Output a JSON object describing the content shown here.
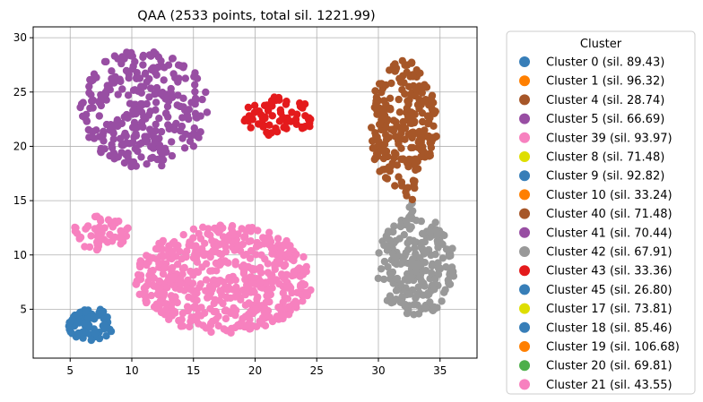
{
  "chart_data": {
    "type": "scatter",
    "title": "QAA (2533 points, total sil. 1221.99)",
    "xlabel": "",
    "ylabel": "",
    "xlim": [
      2,
      38
    ],
    "ylim": [
      0.5,
      31
    ],
    "x_ticks": [
      5,
      10,
      15,
      20,
      25,
      30,
      35
    ],
    "y_ticks": [
      5,
      10,
      15,
      20,
      25,
      30
    ],
    "grid": true,
    "legend_title": "Cluster",
    "legend_position": "outside-right",
    "legend": [
      {
        "label": "Cluster 0 (sil. 89.43)",
        "color": "#377eb8"
      },
      {
        "label": "Cluster 1 (sil. 96.32)",
        "color": "#ff7f00"
      },
      {
        "label": "Cluster 4 (sil. 28.74)",
        "color": "#a65628"
      },
      {
        "label": "Cluster 5 (sil. 66.69)",
        "color": "#984ea3"
      },
      {
        "label": "Cluster 39 (sil. 93.97)",
        "color": "#f781bf"
      },
      {
        "label": "Cluster 8 (sil. 71.48)",
        "color": "#dede00"
      },
      {
        "label": "Cluster 9 (sil. 92.82)",
        "color": "#377eb8"
      },
      {
        "label": "Cluster 10 (sil. 33.24)",
        "color": "#ff7f00"
      },
      {
        "label": "Cluster 40 (sil. 71.48)",
        "color": "#a65628"
      },
      {
        "label": "Cluster 41 (sil. 70.44)",
        "color": "#984ea3"
      },
      {
        "label": "Cluster 42 (sil. 67.91)",
        "color": "#999999"
      },
      {
        "label": "Cluster 43 (sil. 33.36)",
        "color": "#e41a1c"
      },
      {
        "label": "Cluster 45 (sil. 26.80)",
        "color": "#377eb8"
      },
      {
        "label": "Cluster 17 (sil. 73.81)",
        "color": "#dede00"
      },
      {
        "label": "Cluster 18 (sil. 85.46)",
        "color": "#377eb8"
      },
      {
        "label": "Cluster 19 (sil. 106.68)",
        "color": "#ff7f00"
      },
      {
        "label": "Cluster 20 (sil. 69.81)",
        "color": "#4daf4a"
      },
      {
        "label": "Cluster 21 (sil. 43.55)",
        "color": "#f781bf"
      }
    ],
    "groups": [
      {
        "color": "#984ea3",
        "shape": "ellipse",
        "center": [
          11,
          23.5
        ],
        "spread": [
          5.2,
          5.5
        ],
        "count": 300
      },
      {
        "color": "#e41a1c",
        "shape": "ellipse",
        "center": [
          22,
          22.8
        ],
        "spread": [
          3,
          1.9
        ],
        "count": 70
      },
      {
        "color": "#a65628",
        "shape": "ellipse",
        "center": [
          32,
          22
        ],
        "spread": [
          2.8,
          6
        ],
        "count": 230
      },
      {
        "color": "#999999",
        "shape": "ellipse",
        "center": [
          33,
          9
        ],
        "spread": [
          3.3,
          4.6
        ],
        "count": 220
      },
      {
        "color": "#f781bf",
        "shape": "ellipse",
        "center": [
          7.5,
          12
        ],
        "spread": [
          2.3,
          1.6
        ],
        "count": 55
      },
      {
        "color": "#f781bf",
        "shape": "ellipse",
        "center": [
          17.5,
          7.8
        ],
        "spread": [
          7.2,
          5
        ],
        "count": 560
      },
      {
        "color": "#377eb8",
        "shape": "ellipse",
        "center": [
          6.7,
          3.6
        ],
        "spread": [
          1.9,
          1.5
        ],
        "count": 70
      }
    ]
  }
}
